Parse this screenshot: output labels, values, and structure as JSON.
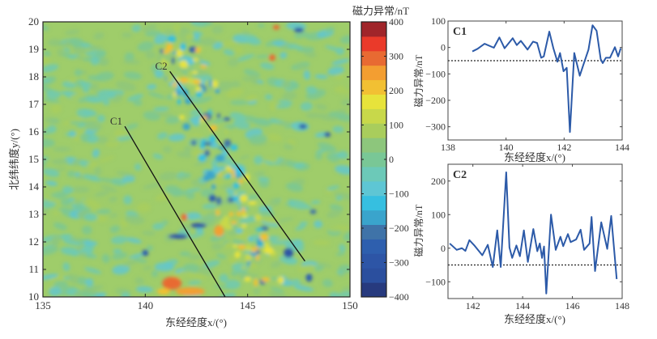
{
  "chart_data": [
    {
      "type": "heatmap",
      "title": "",
      "xlabel": "东经经度x/(°)",
      "ylabel": "北纬纬度y/(°)",
      "xlim": [
        135,
        150
      ],
      "ylim": [
        10,
        20
      ],
      "xticks": [
        "135",
        "140",
        "145",
        "150"
      ],
      "yticks": [
        "10",
        "11",
        "12",
        "13",
        "14",
        "15",
        "16",
        "17",
        "18",
        "19",
        "20"
      ],
      "colorbar": {
        "title": "磁力异常/nT",
        "range": [
          -400,
          400
        ],
        "ticks": [
          "400",
          "300",
          "200",
          "100",
          "0",
          "−100",
          "−200",
          "−300",
          "−400"
        ],
        "colors": [
          "#273a7e",
          "#2b4f9e",
          "#2d55a6",
          "#2e5fae",
          "#3f73a8",
          "#3aa4cc",
          "#36bfe0",
          "#5ec6d4",
          "#6cc9b8",
          "#79c796",
          "#8dc67c",
          "#a9cd5c",
          "#c8d84a",
          "#e7e33b",
          "#f2c033",
          "#f39e31",
          "#e86a32",
          "#ea3a2a",
          "#a0252a"
        ]
      },
      "profiles": [
        {
          "name": "C1",
          "start": [
            139.0,
            16.2
          ],
          "end": [
            143.9,
            10.0
          ]
        },
        {
          "name": "C2",
          "start": [
            141.2,
            18.2
          ],
          "end": [
            147.8,
            11.3
          ]
        }
      ]
    },
    {
      "type": "line",
      "label": "C1",
      "xlabel": "东经经度x/(°)",
      "ylabel": "磁力异常/nT",
      "xlim": [
        138,
        144
      ],
      "ylim": [
        -350,
        100
      ],
      "xticks": [
        "138",
        "140",
        "142",
        "144"
      ],
      "yticks": [
        "−300",
        "−200",
        "−100",
        "0",
        "100"
      ],
      "reference_line": -50,
      "series": [
        {
          "name": "C1",
          "color": "#2c5aa8",
          "x": [
            138.84,
            139.02,
            139.26,
            139.58,
            139.77,
            139.95,
            140.23,
            140.37,
            140.51,
            140.74,
            140.93,
            141.07,
            141.21,
            141.3,
            141.49,
            141.63,
            141.77,
            141.86,
            141.98,
            142.09,
            142.2,
            142.35,
            142.54,
            142.65,
            142.84,
            142.98,
            143.12,
            143.26,
            143.33,
            143.44,
            143.58,
            143.75,
            143.86,
            143.95
          ],
          "y": [
            -15,
            -5,
            14,
            -1,
            38,
            -3,
            35,
            9,
            25,
            -8,
            22,
            17,
            -39,
            -34,
            60,
            -3,
            -54,
            -21,
            -90,
            -77,
            -320,
            -21,
            -107,
            -70,
            -8,
            84,
            63,
            -44,
            -59,
            -39,
            -39,
            1,
            -34,
            -3
          ]
        }
      ]
    },
    {
      "type": "line",
      "label": "C2",
      "xlabel": "东经经度x/(°)",
      "ylabel": "磁力异常/nT",
      "xlim": [
        141,
        148
      ],
      "ylim": [
        -150,
        250
      ],
      "xticks": [
        "142",
        "144",
        "146",
        "148"
      ],
      "yticks": [
        "−100",
        "0",
        "100",
        "200"
      ],
      "reference_line": -50,
      "series": [
        {
          "name": "C2",
          "color": "#2c5aa8",
          "x": [
            141.07,
            141.35,
            141.56,
            141.7,
            141.86,
            142.05,
            142.38,
            142.6,
            142.8,
            142.98,
            143.12,
            143.34,
            143.47,
            143.58,
            143.75,
            143.89,
            144.05,
            144.21,
            144.43,
            144.59,
            144.69,
            144.78,
            144.86,
            144.95,
            145.14,
            145.33,
            145.52,
            145.63,
            145.82,
            145.93,
            146.15,
            146.33,
            146.47,
            146.69,
            146.77,
            146.91,
            147.16,
            147.4,
            147.56,
            147.78
          ],
          "y": [
            14,
            -5,
            0,
            -8,
            24,
            9,
            -21,
            10,
            -56,
            53,
            -56,
            226,
            2,
            -29,
            8,
            -24,
            53,
            -41,
            57,
            -9,
            14,
            -29,
            5,
            -135,
            100,
            -5,
            34,
            6,
            42,
            18,
            26,
            55,
            -5,
            14,
            93,
            -68,
            77,
            -2,
            96,
            -92
          ]
        }
      ]
    }
  ]
}
